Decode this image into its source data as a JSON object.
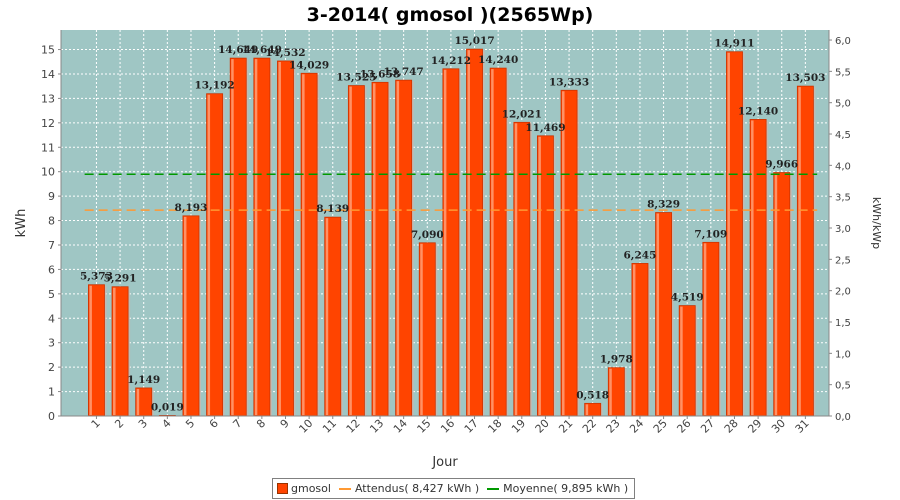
{
  "chart_data": {
    "type": "bar",
    "title": "3-2014( gmosol )(2565Wp)",
    "xlabel": "Jour",
    "ylabel": "kWh",
    "ylabel_right": "kWh/kWp",
    "ylim": [
      0,
      15.8
    ],
    "yticks": [
      "0",
      "1",
      "2",
      "3",
      "4",
      "5",
      "6",
      "7",
      "8",
      "9",
      "10",
      "11",
      "12",
      "13",
      "14",
      "15"
    ],
    "ylim_right": [
      0,
      6.16
    ],
    "yticks_right": [
      "0,0",
      "0,5",
      "1,0",
      "1,5",
      "2,0",
      "2,5",
      "3,0",
      "3,5",
      "4,0",
      "4,5",
      "5,0",
      "5,5",
      "6,0"
    ],
    "grid": true,
    "legend_position": "bottom-center",
    "categories": [
      "1",
      "2",
      "3",
      "4",
      "5",
      "6",
      "7",
      "8",
      "9",
      "10",
      "11",
      "12",
      "13",
      "14",
      "15",
      "16",
      "17",
      "18",
      "19",
      "20",
      "21",
      "22",
      "23",
      "24",
      "25",
      "26",
      "27",
      "28",
      "29",
      "30",
      "31"
    ],
    "series": [
      {
        "name": "gmosol",
        "values": [
          5.373,
          5.291,
          1.149,
          0.019,
          8.193,
          13.192,
          14.649,
          14.649,
          14.532,
          14.029,
          8.139,
          13.525,
          13.658,
          13.747,
          7.09,
          14.212,
          15.017,
          14.24,
          12.021,
          11.469,
          13.333,
          0.518,
          1.978,
          6.245,
          8.329,
          4.519,
          7.109,
          14.911,
          12.14,
          9.966,
          13.503
        ],
        "labels": [
          "5,373",
          "5,291",
          "1,149",
          "0,019",
          "8,193",
          "13,192",
          "14,649",
          "14,649",
          "14,532",
          "14,029",
          "8,139",
          "13,525",
          "13,658",
          "13,747",
          "7,090",
          "14,212",
          "15,017",
          "14,240",
          "12,021",
          "11,469",
          "13,333",
          "0,518",
          "1,978",
          "6,245",
          "8,329",
          "4,519",
          "7,109",
          "14,911",
          "12,140",
          "9,966",
          "13,503"
        ],
        "color": "#ff4400"
      }
    ],
    "reference_lines": [
      {
        "name": "Attendus( 8,427 kWh )",
        "value": 8.427,
        "color": "#ff9933",
        "x_start": "1",
        "x_end": "31"
      },
      {
        "name": "Moyenne( 9,895 kWh )",
        "value": 9.895,
        "color": "#009900",
        "x_start": "1",
        "x_end": "31"
      }
    ],
    "legend": [
      "gmosol",
      "Attendus( 8,427 kWh )",
      "Moyenne( 9,895 kWh )"
    ],
    "colors": {
      "plot_bg": "#9fc6c4",
      "grid": "#ffffff",
      "bar": "#ff4400",
      "bar_edge": "#cc3300"
    }
  }
}
